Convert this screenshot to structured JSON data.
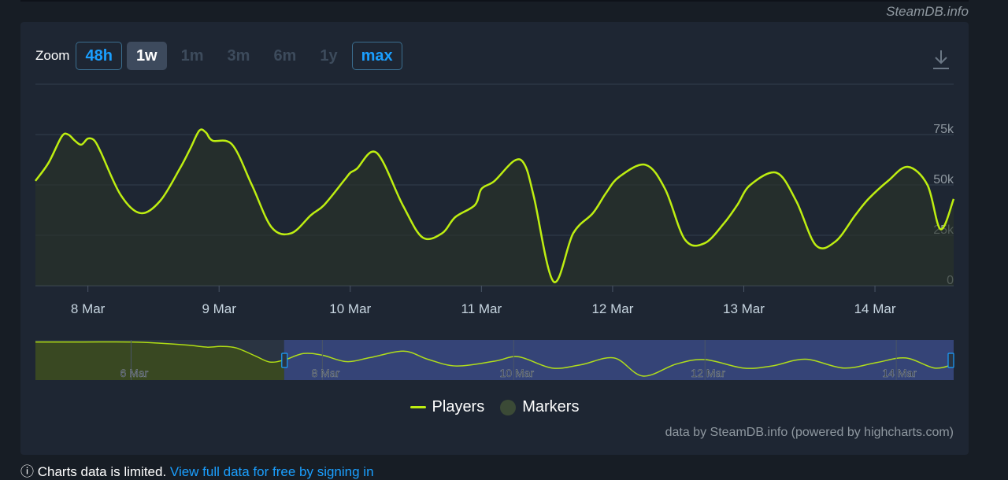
{
  "site_credit": "SteamDB.info",
  "zoom": {
    "label": "Zoom",
    "buttons": [
      {
        "label": "48h",
        "state": "outline"
      },
      {
        "label": "1w",
        "state": "active"
      },
      {
        "label": "1m",
        "state": "disabled"
      },
      {
        "label": "3m",
        "state": "disabled"
      },
      {
        "label": "6m",
        "state": "disabled"
      },
      {
        "label": "1y",
        "state": "disabled"
      },
      {
        "label": "max",
        "state": "outline"
      }
    ]
  },
  "download_icon": "download-icon",
  "colors": {
    "players_line": "#beee11",
    "markers": "#3b4a36",
    "accent": "#1a9fff",
    "navigator_window": "#3a4a8a"
  },
  "chart_data": {
    "type": "line",
    "series": [
      {
        "name": "Players",
        "x": [
          7.6,
          7.7,
          7.8,
          7.85,
          7.9,
          7.95,
          8.0,
          8.05,
          8.1,
          8.25,
          8.4,
          8.55,
          8.7,
          8.78,
          8.85,
          8.9,
          8.95,
          9.1,
          9.25,
          9.4,
          9.55,
          9.7,
          9.8,
          9.95,
          10.0,
          10.05,
          10.2,
          10.4,
          10.55,
          10.7,
          10.8,
          10.95,
          11.0,
          11.1,
          11.25,
          11.33,
          11.4,
          11.55,
          11.7,
          11.85,
          11.95,
          12.05,
          12.25,
          12.4,
          12.55,
          12.7,
          12.85,
          12.95,
          13.05,
          13.25,
          13.4,
          13.55,
          13.7,
          13.85,
          13.95,
          14.1,
          14.25,
          14.4,
          14.5,
          14.6
        ],
        "values": [
          52,
          61,
          74,
          75,
          72,
          70,
          73,
          72,
          66,
          45,
          36,
          42,
          58,
          68,
          77,
          76,
          72,
          70,
          50,
          29,
          26,
          35,
          40,
          52,
          56,
          58,
          66,
          40,
          24,
          26,
          34,
          40,
          48,
          52,
          62,
          60,
          44,
          2,
          26,
          36,
          46,
          54,
          60,
          48,
          23,
          21,
          31,
          40,
          50,
          56,
          42,
          20,
          22,
          35,
          43,
          52,
          59,
          50,
          28,
          43
        ]
      }
    ],
    "x_ticks": [
      "8 Mar",
      "9 Mar",
      "10 Mar",
      "11 Mar",
      "12 Mar",
      "13 Mar",
      "14 Mar"
    ],
    "y_ticks": [
      "0",
      "25k",
      "50k",
      "75k"
    ],
    "ylim": [
      0,
      100
    ],
    "xlim": [
      7.6,
      14.6
    ],
    "navigator": {
      "x_ticks": [
        "6 Mar",
        "8 Mar",
        "10 Mar",
        "12 Mar",
        "14 Mar"
      ],
      "xlim": [
        5.0,
        14.6
      ],
      "selected_range": [
        7.6,
        14.6
      ],
      "x": [
        5.0,
        5.5,
        6.0,
        6.3,
        6.6,
        6.8,
        6.95,
        7.1,
        7.3,
        7.45,
        7.6,
        7.8,
        8.0,
        8.25,
        8.5,
        8.85,
        9.1,
        9.4,
        9.8,
        10.05,
        10.4,
        10.7,
        11.05,
        11.35,
        11.7,
        12.0,
        12.4,
        12.7,
        13.05,
        13.45,
        13.8,
        14.1,
        14.4,
        14.6
      ],
      "values": [
        95,
        95,
        95,
        92,
        87,
        82,
        84,
        80,
        60,
        45,
        50,
        66,
        62,
        46,
        56,
        72,
        52,
        35,
        47,
        58,
        30,
        38,
        55,
        10,
        40,
        51,
        30,
        35,
        52,
        30,
        44,
        55,
        30,
        40
      ]
    },
    "legend": [
      "Players",
      "Markers"
    ],
    "legend_position": "bottom-center",
    "grid": true
  },
  "credits": "data by SteamDB.info (powered by highcharts.com)",
  "below_text": {
    "prefix": "ⓘ Charts data is limited. ",
    "link": "View full data for free by signing in"
  }
}
